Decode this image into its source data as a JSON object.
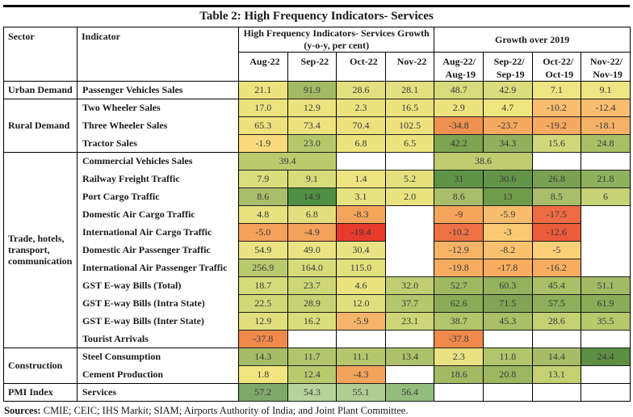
{
  "title": "Table 2: High Frequency Indicators- Services",
  "header": {
    "sector": "Sector",
    "indicator": "Indicator",
    "group1_line1": "High Frequency Indicators- Services Growth",
    "group1_line2": "(y-o-y, per cent)",
    "group2": "Growth over 2019",
    "cols": [
      "Aug-22",
      "Sep-22",
      "Oct-22",
      "Nov-22"
    ],
    "cols2": [
      {
        "l1": "Aug-22/",
        "l2": "Aug-19"
      },
      {
        "l1": "Sep-22/",
        "l2": "Sep-19"
      },
      {
        "l1": "Oct-22/",
        "l2": "Oct-19"
      },
      {
        "l1": "Nov-22/",
        "l2": "Nov-19"
      }
    ]
  },
  "chart_data": {
    "type": "table",
    "title": "Table 2: High Frequency Indicators- Services",
    "column_groups": [
      "High Frequency Indicators- Services Growth (y-o-y, per cent)",
      "Growth over 2019"
    ],
    "columns": [
      "Aug-22",
      "Sep-22",
      "Oct-22",
      "Nov-22",
      "Aug-22/Aug-19",
      "Sep-22/Sep-19",
      "Oct-22/Oct-19",
      "Nov-22/Nov-19"
    ],
    "legend": "heatmap: green = high growth, yellow = near zero, orange/red = negative",
    "groups": [
      {
        "sector": "Urban Demand",
        "rows": [
          {
            "indicator": "Passenger Vehicles Sales",
            "cells": [
              {
                "v": "21.1",
                "bg": "#ece37f"
              },
              {
                "v": "91.9",
                "bg": "#a4b963"
              },
              {
                "v": "28.6",
                "bg": "#e3e07f"
              },
              {
                "v": "28.1",
                "bg": "#e3e07f"
              },
              {
                "v": "48.7",
                "bg": "#d6dc7b"
              },
              {
                "v": "42.9",
                "bg": "#d9dd7c"
              },
              {
                "v": "7.1",
                "bg": "#eee484"
              },
              {
                "v": "9.1",
                "bg": "#eee484"
              }
            ]
          }
        ]
      },
      {
        "sector": "Rural Demand",
        "rows": [
          {
            "indicator": "Two Wheeler Sales",
            "cells": [
              {
                "v": "17.0",
                "bg": "#ece37f"
              },
              {
                "v": "12.9",
                "bg": "#ece37f"
              },
              {
                "v": "2.3",
                "bg": "#ece37f"
              },
              {
                "v": "16.5",
                "bg": "#ece37f"
              },
              {
                "v": "2.9",
                "bg": "#ece37f"
              },
              {
                "v": "4.7",
                "bg": "#efe680"
              },
              {
                "v": "-10.2",
                "bg": "#f8bd6e"
              },
              {
                "v": "-12.4",
                "bg": "#f8bd6e"
              }
            ]
          },
          {
            "indicator": "Three Wheeler Sales",
            "cells": [
              {
                "v": "65.3",
                "bg": "#eee27f"
              },
              {
                "v": "73.4",
                "bg": "#eee27f"
              },
              {
                "v": "70.4",
                "bg": "#eee27f"
              },
              {
                "v": "102.5",
                "bg": "#eee27f"
              },
              {
                "v": "-34.8",
                "bg": "#ef9150"
              },
              {
                "v": "-23.7",
                "bg": "#f4aa60"
              },
              {
                "v": "-19.2",
                "bg": "#f4aa60"
              },
              {
                "v": "-18.1",
                "bg": "#f5b166"
              }
            ]
          },
          {
            "indicator": "Tractor Sales",
            "cells": [
              {
                "v": "-1.9",
                "bg": "#f9d97e"
              },
              {
                "v": "23.0",
                "bg": "#b7c86c"
              },
              {
                "v": "6.8",
                "bg": "#ece37f"
              },
              {
                "v": "6.5",
                "bg": "#ece37f"
              },
              {
                "v": "42.2",
                "bg": "#7ca451"
              },
              {
                "v": "34.3",
                "bg": "#92b05d"
              },
              {
                "v": "15.6",
                "bg": "#cfd878"
              },
              {
                "v": "24.8",
                "bg": "#a9bf66"
              }
            ]
          }
        ]
      },
      {
        "sector": "Trade, hotels, transport, communication",
        "rows": [
          {
            "indicator": "Commercial Vehicles Sales",
            "cells": [
              {
                "v": "39.4",
                "bg": "#bcca6e",
                "span": 2
              },
              {
                "v": ""
              },
              {
                "v": ""
              },
              {
                "v": "38.6",
                "bg": "#becb6f",
                "span": 2
              },
              {
                "v": ""
              },
              {
                "v": ""
              }
            ]
          },
          {
            "indicator": "Railway Freight Traffic",
            "cells": [
              {
                "v": "7.9",
                "bg": "#dade7c"
              },
              {
                "v": "9.1",
                "bg": "#d7dc7b"
              },
              {
                "v": "1.4",
                "bg": "#ede381"
              },
              {
                "v": "5.2",
                "bg": "#e4e07e"
              },
              {
                "v": "31",
                "bg": "#5f9347"
              },
              {
                "v": "30.6",
                "bg": "#639548"
              },
              {
                "v": "26.8",
                "bg": "#79a151"
              },
              {
                "v": "21.8",
                "bg": "#8fb05d"
              }
            ]
          },
          {
            "indicator": "Port Cargo Traffic",
            "cells": [
              {
                "v": "8.6",
                "bg": "#a9bd6a"
              },
              {
                "v": "14.9",
                "bg": "#4f8f43"
              },
              {
                "v": "3.1",
                "bg": "#e6e382"
              },
              {
                "v": "2.0",
                "bg": "#e9e37f"
              },
              {
                "v": "8.6",
                "bg": "#a9bd6a"
              },
              {
                "v": "13",
                "bg": "#6f9c4b"
              },
              {
                "v": "8.5",
                "bg": "#a9bd6a"
              },
              {
                "v": "6",
                "bg": "#c6d376"
              }
            ]
          },
          {
            "indicator": "Domestic Air Cargo Traffic",
            "cells": [
              {
                "v": "4.8",
                "bg": "#e7e17f"
              },
              {
                "v": "6.8",
                "bg": "#e2e07e"
              },
              {
                "v": "-8.3",
                "bg": "#f5a55b"
              },
              {
                "v": ""
              },
              {
                "v": "-9",
                "bg": "#f5a55b"
              },
              {
                "v": "-5.9",
                "bg": "#f8bc6e"
              },
              {
                "v": "-17.5",
                "bg": "#ee6b44"
              },
              {
                "v": ""
              }
            ]
          },
          {
            "indicator": "International Air Cargo Traffic",
            "cells": [
              {
                "v": "-5.0",
                "bg": "#f4a15c"
              },
              {
                "v": "-4.9",
                "bg": "#f4a15c"
              },
              {
                "v": "-19.4",
                "bg": "#e8392d"
              },
              {
                "v": ""
              },
              {
                "v": "-10.2",
                "bg": "#ee7146"
              },
              {
                "v": "-3",
                "bg": "#f9c873"
              },
              {
                "v": "-12.6",
                "bg": "#ec5c3b"
              },
              {
                "v": ""
              }
            ]
          },
          {
            "indicator": "Domestic Air Passenger Traffic",
            "cells": [
              {
                "v": "54.9",
                "bg": "#e9e383"
              },
              {
                "v": "49.0",
                "bg": "#e9e383"
              },
              {
                "v": "30.4",
                "bg": "#e9e383"
              },
              {
                "v": ""
              },
              {
                "v": "-12.9",
                "bg": "#f7b366"
              },
              {
                "v": "-8.2",
                "bg": "#f9c16f"
              },
              {
                "v": "-5",
                "bg": "#fbd077"
              },
              {
                "v": ""
              }
            ]
          },
          {
            "indicator": "International Air Passenger Traffic",
            "cells": [
              {
                "v": "256.9",
                "bg": "#b9c96e"
              },
              {
                "v": "164.0",
                "bg": "#d7dc7b"
              },
              {
                "v": "115.0",
                "bg": "#e3e07e"
              },
              {
                "v": ""
              },
              {
                "v": "-19.8",
                "bg": "#f6ad60"
              },
              {
                "v": "-17.8",
                "bg": "#f6ad60"
              },
              {
                "v": "-16.2",
                "bg": "#f6ad60"
              },
              {
                "v": ""
              }
            ]
          },
          {
            "indicator": "GST E-way Bills (Total)",
            "cells": [
              {
                "v": "18.7",
                "bg": "#d4db7a"
              },
              {
                "v": "23.7",
                "bg": "#cdd777"
              },
              {
                "v": "4.6",
                "bg": "#ece37f"
              },
              {
                "v": "32.0",
                "bg": "#c0ce71"
              },
              {
                "v": "52.7",
                "bg": "#9fb963"
              },
              {
                "v": "60.3",
                "bg": "#94b15e"
              },
              {
                "v": "45.4",
                "bg": "#a9bf68"
              },
              {
                "v": "51.1",
                "bg": "#a2ba64"
              }
            ]
          },
          {
            "indicator": "GST E-way Bills (Intra State)",
            "cells": [
              {
                "v": "22.5",
                "bg": "#d0d978"
              },
              {
                "v": "28.9",
                "bg": "#c6d274"
              },
              {
                "v": "12.0",
                "bg": "#e0df7d"
              },
              {
                "v": "37.7",
                "bg": "#b4c76c"
              },
              {
                "v": "62.6",
                "bg": "#8aac59"
              },
              {
                "v": "71.5",
                "bg": "#81a554"
              },
              {
                "v": "57.5",
                "bg": "#90af5c"
              },
              {
                "v": "61.9",
                "bg": "#8aac59"
              }
            ]
          },
          {
            "indicator": "GST E-way Bills (Inter State)",
            "cells": [
              {
                "v": "12.9",
                "bg": "#dfdf7e"
              },
              {
                "v": "16.2",
                "bg": "#d9dd7b"
              },
              {
                "v": "-5.9",
                "bg": "#f6b46a"
              },
              {
                "v": "23.1",
                "bg": "#cdd777"
              },
              {
                "v": "38.7",
                "bg": "#b2c56b"
              },
              {
                "v": "45.3",
                "bg": "#aabf67"
              },
              {
                "v": "28.6",
                "bg": "#c4d173"
              },
              {
                "v": "35.5",
                "bg": "#b8c96d"
              }
            ]
          },
          {
            "indicator": "Tourist Arrivals",
            "cells": [
              {
                "v": "-37.8",
                "bg": "#f08a4b"
              },
              {
                "v": ""
              },
              {
                "v": ""
              },
              {
                "v": ""
              },
              {
                "v": "-37.8",
                "bg": "#f08a4b"
              },
              {
                "v": ""
              },
              {
                "v": ""
              },
              {
                "v": ""
              }
            ]
          }
        ]
      },
      {
        "sector": "Construction",
        "rows": [
          {
            "indicator": "Steel Consumption",
            "cells": [
              {
                "v": "14.3",
                "bg": "#a7bc66"
              },
              {
                "v": "11.7",
                "bg": "#b3c56c"
              },
              {
                "v": "11.1",
                "bg": "#b5c66d"
              },
              {
                "v": "13.4",
                "bg": "#adc169"
              },
              {
                "v": "2.3",
                "bg": "#e9e283"
              },
              {
                "v": "11.8",
                "bg": "#b3c56c"
              },
              {
                "v": "14.4",
                "bg": "#a7bc66"
              },
              {
                "v": "24.4",
                "bg": "#5c8f44"
              }
            ]
          },
          {
            "indicator": "Cement Production",
            "cells": [
              {
                "v": "1.8",
                "bg": "#f0e57e"
              },
              {
                "v": "12.4",
                "bg": "#b9c96e"
              },
              {
                "v": "-4.3",
                "bg": "#f2a45c"
              },
              {
                "v": ""
              },
              {
                "v": "18.6",
                "bg": "#a3ba63"
              },
              {
                "v": "20.8",
                "bg": "#9db660"
              },
              {
                "v": "13.1",
                "bg": "#c3d172"
              },
              {
                "v": ""
              }
            ]
          }
        ]
      },
      {
        "sector": "PMI Index",
        "rows": [
          {
            "indicator": "Services",
            "cells": [
              {
                "v": "57.2",
                "bg": "#7fa96a"
              },
              {
                "v": "54.3",
                "bg": "#b7d29b"
              },
              {
                "v": "55.1",
                "bg": "#b0cd94"
              },
              {
                "v": "56.4",
                "bg": "#94bc7c"
              },
              {
                "v": ""
              },
              {
                "v": ""
              },
              {
                "v": ""
              },
              {
                "v": ""
              }
            ]
          }
        ]
      }
    ]
  },
  "sources": {
    "label": "Sources:",
    "text": " CMIE; CEIC; IHS Markit; SIAM; Airports Authority of India; and Joint Plant Committee."
  }
}
